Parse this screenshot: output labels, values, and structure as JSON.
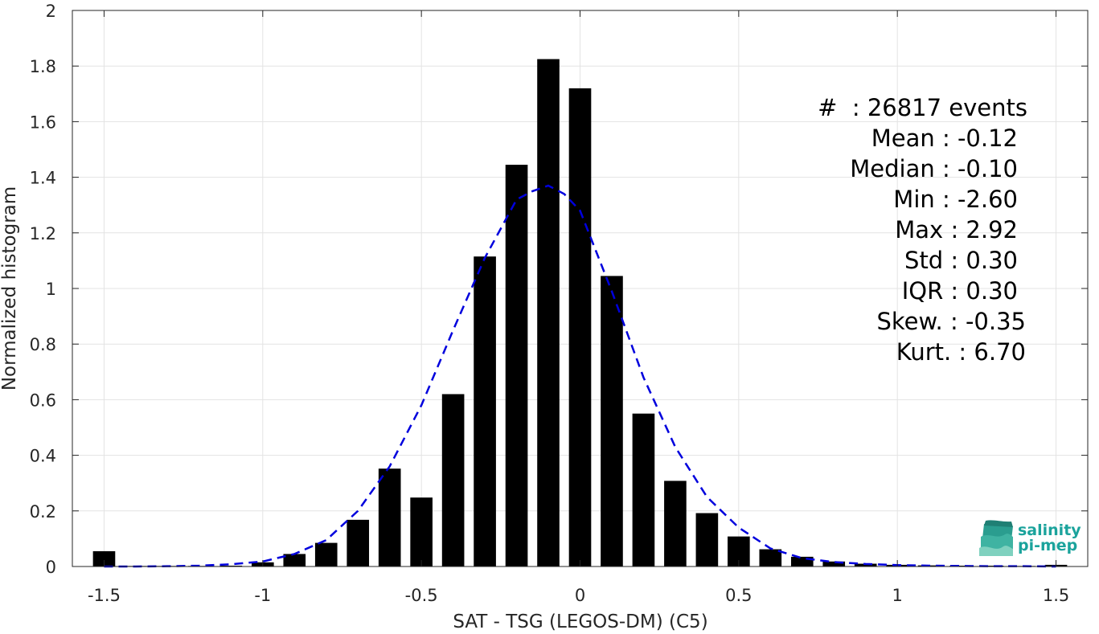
{
  "chart_data": {
    "type": "bar",
    "title": "",
    "xlabel": "SAT - TSG (LEGOS-DM) (C5)",
    "ylabel": "Normalized histogram",
    "xlim": [
      -1.6,
      1.6
    ],
    "ylim": [
      0,
      2
    ],
    "grid": true,
    "xticks": [
      -1.5,
      -1,
      -0.5,
      0,
      0.5,
      1,
      1.5
    ],
    "xtick_labels": [
      "-1.5",
      "-1",
      "-0.5",
      "0",
      "0.5",
      "1",
      "1.5"
    ],
    "yticks": [
      0,
      0.2,
      0.4,
      0.6,
      0.8,
      1,
      1.2,
      1.4,
      1.6,
      1.8,
      2
    ],
    "ytick_labels": [
      "0",
      "0.2",
      "0.4",
      "0.6",
      "0.8",
      "1",
      "1.2",
      "1.4",
      "1.6",
      "1.8",
      "2"
    ],
    "bar_width": 0.07,
    "bar_color": "#000000",
    "bars": {
      "x": [
        -1.5,
        -1.4,
        -1.3,
        -1.2,
        -1.1,
        -1.0,
        -0.9,
        -0.8,
        -0.7,
        -0.6,
        -0.5,
        -0.4,
        -0.3,
        -0.2,
        -0.1,
        0.0,
        0.1,
        0.2,
        0.3,
        0.4,
        0.5,
        0.6,
        0.7,
        0.8,
        0.9,
        1.0,
        1.1,
        1.2,
        1.3,
        1.4,
        1.5
      ],
      "values": [
        0.055,
        0.002,
        0.002,
        0.002,
        0.003,
        0.015,
        0.045,
        0.085,
        0.168,
        0.352,
        0.248,
        0.62,
        1.115,
        1.445,
        1.825,
        1.72,
        1.045,
        0.55,
        0.308,
        0.192,
        0.108,
        0.062,
        0.035,
        0.018,
        0.01,
        0.006,
        0.004,
        0.003,
        0.003,
        0.002,
        0.006
      ]
    },
    "fit_curve": {
      "name": "gaussian fit",
      "style": "dashed",
      "color": "#0000dd",
      "x": [
        -1.5,
        -1.4,
        -1.3,
        -1.2,
        -1.1,
        -1.0,
        -0.9,
        -0.8,
        -0.7,
        -0.6,
        -0.5,
        -0.4,
        -0.3,
        -0.2,
        -0.15,
        -0.1,
        -0.05,
        0.0,
        0.1,
        0.2,
        0.3,
        0.4,
        0.5,
        0.6,
        0.7,
        0.8,
        0.9,
        1.0,
        1.1,
        1.2,
        1.3,
        1.4,
        1.5
      ],
      "y": [
        0.0,
        0.0,
        0.001,
        0.003,
        0.008,
        0.018,
        0.045,
        0.095,
        0.2,
        0.36,
        0.58,
        0.85,
        1.11,
        1.32,
        1.35,
        1.37,
        1.34,
        1.28,
        0.99,
        0.68,
        0.43,
        0.25,
        0.14,
        0.065,
        0.03,
        0.016,
        0.009,
        0.005,
        0.003,
        0.002,
        0.001,
        0.001,
        0.0
      ]
    },
    "annotations": [
      "#  : 26817 events",
      "Mean : -0.12",
      "Median : -0.10",
      "Min : -2.60",
      "Max : 2.92",
      "Std : 0.30",
      "IQR : 0.30",
      "Skew. : -0.35",
      "Kurt. : 6.70"
    ]
  },
  "logo": {
    "line1": "salinity",
    "line2": "pi-mep",
    "color": "#1ba39c"
  }
}
